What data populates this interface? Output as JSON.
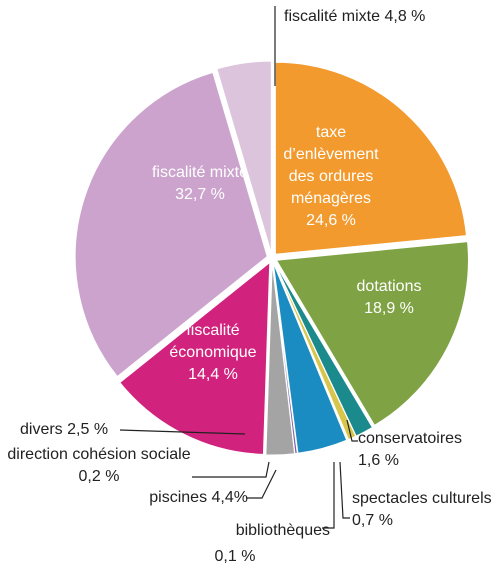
{
  "chart_data": {
    "type": "pie",
    "categories": [
      "taxe d’enlèvement des ordures ménagères",
      "dotations",
      "conservatoires",
      "spectacles culturels",
      "bibliothèques",
      "piscines",
      "direction cohésion sociale",
      "divers",
      "fiscalité économique",
      "fiscalité mixte",
      "fiscalité mixte"
    ],
    "values": [
      24.6,
      18.9,
      1.6,
      0.7,
      0.1,
      4.4,
      0.2,
      2.5,
      14.4,
      32.7,
      4.8
    ],
    "value_labels": [
      "24,6 %",
      "18,9 %",
      "1,6 %",
      "0,7 %",
      "0,1 %",
      "4,4%",
      "0,2 %",
      "2,5 %",
      "14,4 %",
      "32,7 %",
      "4,8 %"
    ],
    "colors": [
      "#f29a2e",
      "#7fa344",
      "#1a8a8c",
      "#d8c64c",
      "#e3a6c8",
      "#1b8cc2",
      "#7d5ea4",
      "#a4a4a4",
      "#d1237d",
      "#cba3cd",
      "#dcc4dc"
    ]
  }
}
